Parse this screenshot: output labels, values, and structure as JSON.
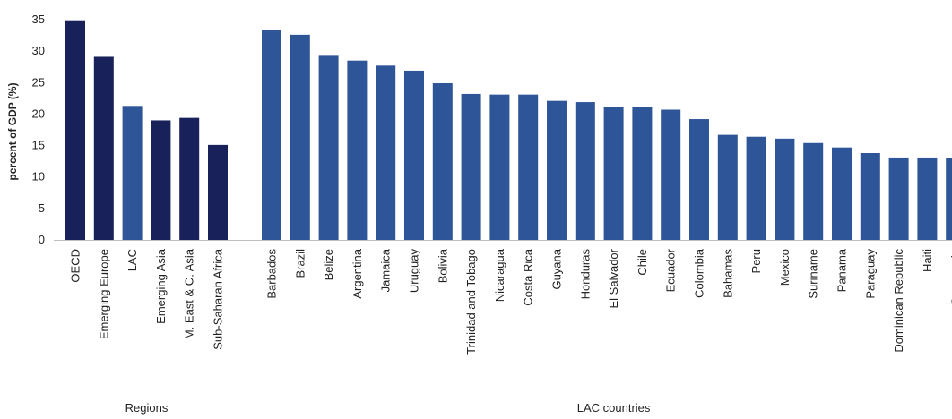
{
  "chart_data": {
    "type": "bar",
    "ylabel": "percent of GDP (%)",
    "ylim": [
      0,
      35
    ],
    "yticks": [
      0,
      5,
      10,
      15,
      20,
      25,
      30,
      35
    ],
    "grid": false,
    "groups": [
      {
        "label": "Regions",
        "categories": [
          "OECD",
          "Emerging Europe",
          "LAC",
          "Emerging Asia",
          "M. East & C. Asia",
          "Sub-Saharan Africa"
        ],
        "values": [
          34.9,
          29.1,
          21.3,
          19.0,
          19.4,
          15.1
        ],
        "colors": [
          "#18215a",
          "#18215a",
          "#2e5597",
          "#18215a",
          "#18215a",
          "#18215a"
        ]
      },
      {
        "label": "LAC countries",
        "categories": [
          "Barbados",
          "Brazil",
          "Belize",
          "Argentina",
          "Jamaica",
          "Uruguay",
          "Bolivia",
          "Trinidad and Tobago",
          "Nicaragua",
          "Costa Rica",
          "Guyana",
          "Honduras",
          "El Salvador",
          "Chile",
          "Ecuador",
          "Colombia",
          "Bahamas",
          "Peru",
          "Mexico",
          "Suriname",
          "Panama",
          "Paraguay",
          "Dominican Republic",
          "Haiti",
          "Guatemala"
        ],
        "values": [
          33.3,
          32.6,
          29.4,
          28.5,
          27.7,
          26.9,
          24.9,
          23.2,
          23.1,
          23.1,
          22.1,
          21.9,
          21.2,
          21.2,
          20.7,
          19.2,
          16.7,
          16.4,
          16.1,
          15.4,
          14.7,
          13.8,
          13.1,
          13.1,
          13.0
        ],
        "colors": [
          "#2e5597"
        ]
      }
    ]
  }
}
